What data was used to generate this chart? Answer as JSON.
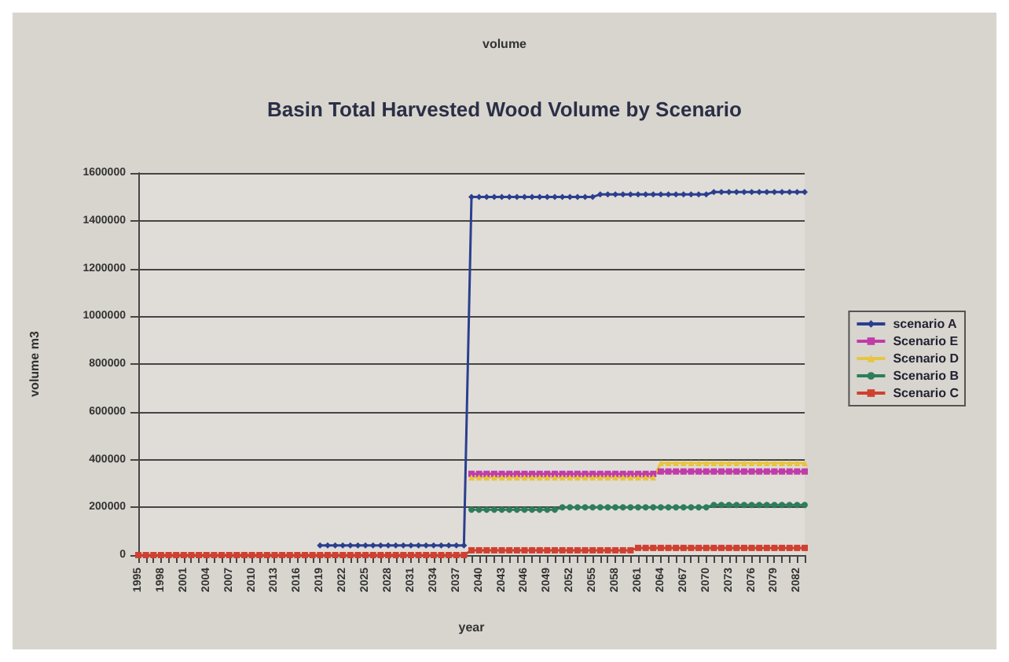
{
  "chart_data": {
    "type": "line",
    "title": "Basin Total Harvested Wood Volume by Scenario",
    "annotations": [
      "volume"
    ],
    "xlabel": "year",
    "ylabel": "volume m3",
    "categories": [
      "1995",
      null,
      null,
      "1998",
      null,
      null,
      "2001",
      null,
      null,
      "2004",
      null,
      null,
      "2007",
      null,
      null,
      "2010",
      null,
      null,
      "2013",
      null,
      null,
      "2016",
      null,
      null,
      "2019",
      null,
      null,
      "2022",
      null,
      null,
      "2025",
      null,
      null,
      "2028",
      null,
      null,
      "2031",
      null,
      null,
      "2034",
      null,
      null,
      "2037",
      null,
      null,
      "2040",
      null,
      null,
      "2043",
      null,
      null,
      "2046",
      null,
      null,
      "2049",
      null,
      null,
      "2052",
      null,
      null,
      "2055",
      null,
      null,
      "2058",
      null,
      null,
      "2061",
      null,
      null,
      "2064",
      null,
      null,
      "2067",
      null,
      null,
      "2070",
      null,
      null,
      "2073",
      null,
      null,
      "2076",
      null,
      null,
      "2079",
      null,
      null,
      "2082",
      null
    ],
    "series": [
      {
        "name": "scenario A",
        "color": "#2b3f8f",
        "marker": "diamond",
        "values": [
          null,
          null,
          null,
          null,
          null,
          null,
          null,
          null,
          null,
          null,
          null,
          null,
          null,
          null,
          null,
          null,
          null,
          null,
          null,
          null,
          null,
          null,
          null,
          null,
          40000,
          40000,
          40000,
          40000,
          40000,
          40000,
          40000,
          40000,
          40000,
          40000,
          40000,
          40000,
          40000,
          40000,
          40000,
          40000,
          40000,
          40000,
          40000,
          40000,
          1500000,
          1500000,
          1500000,
          1500000,
          1500000,
          1500000,
          1500000,
          1500000,
          1500000,
          1500000,
          1500000,
          1500000,
          1500000,
          1500000,
          1500000,
          1500000,
          1500000,
          1510000,
          1510000,
          1510000,
          1510000,
          1510000,
          1510000,
          1510000,
          1510000,
          1510000,
          1510000,
          1510000,
          1510000,
          1510000,
          1510000,
          1510000,
          1520000,
          1520000,
          1520000,
          1520000,
          1520000,
          1520000,
          1520000,
          1520000,
          1520000,
          1520000,
          1520000,
          1520000,
          1520000
        ]
      },
      {
        "name": "Scenario E",
        "color": "#c03ca8",
        "marker": "square",
        "values": [
          null,
          null,
          null,
          null,
          null,
          null,
          null,
          null,
          null,
          null,
          null,
          null,
          null,
          null,
          null,
          null,
          null,
          null,
          null,
          null,
          null,
          null,
          null,
          null,
          null,
          null,
          null,
          null,
          null,
          null,
          null,
          null,
          null,
          null,
          null,
          null,
          null,
          null,
          null,
          null,
          null,
          null,
          null,
          null,
          340000,
          340000,
          340000,
          340000,
          340000,
          340000,
          340000,
          340000,
          340000,
          340000,
          340000,
          340000,
          340000,
          340000,
          340000,
          340000,
          340000,
          340000,
          340000,
          340000,
          340000,
          340000,
          340000,
          340000,
          340000,
          350000,
          350000,
          350000,
          350000,
          350000,
          350000,
          350000,
          350000,
          350000,
          350000,
          350000,
          350000,
          350000,
          350000,
          350000,
          350000,
          350000,
          350000,
          350000,
          350000
        ]
      },
      {
        "name": "Scenario D",
        "color": "#e8c440",
        "marker": "triangle",
        "values": [
          null,
          null,
          null,
          null,
          null,
          null,
          null,
          null,
          null,
          null,
          null,
          null,
          null,
          null,
          null,
          null,
          null,
          null,
          null,
          null,
          null,
          null,
          null,
          null,
          null,
          null,
          null,
          null,
          null,
          null,
          null,
          null,
          null,
          null,
          null,
          null,
          null,
          null,
          null,
          null,
          null,
          null,
          null,
          null,
          325000,
          325000,
          325000,
          325000,
          325000,
          325000,
          325000,
          325000,
          325000,
          325000,
          325000,
          325000,
          325000,
          325000,
          325000,
          325000,
          325000,
          325000,
          325000,
          325000,
          325000,
          325000,
          325000,
          325000,
          325000,
          385000,
          385000,
          385000,
          385000,
          385000,
          385000,
          385000,
          385000,
          385000,
          385000,
          385000,
          385000,
          385000,
          385000,
          385000,
          385000,
          385000,
          385000,
          385000,
          385000
        ]
      },
      {
        "name": "Scenario B",
        "color": "#2e7d5a",
        "marker": "circle",
        "values": [
          null,
          null,
          null,
          null,
          null,
          null,
          null,
          null,
          null,
          null,
          null,
          null,
          null,
          null,
          null,
          null,
          null,
          null,
          null,
          null,
          null,
          null,
          null,
          null,
          null,
          null,
          null,
          null,
          null,
          null,
          null,
          null,
          null,
          null,
          null,
          null,
          null,
          null,
          null,
          null,
          null,
          null,
          null,
          null,
          190000,
          190000,
          190000,
          190000,
          190000,
          190000,
          190000,
          190000,
          190000,
          190000,
          190000,
          190000,
          200000,
          200000,
          200000,
          200000,
          200000,
          200000,
          200000,
          200000,
          200000,
          200000,
          200000,
          200000,
          200000,
          200000,
          200000,
          200000,
          200000,
          200000,
          200000,
          200000,
          210000,
          210000,
          210000,
          210000,
          210000,
          210000,
          210000,
          210000,
          210000,
          210000,
          210000,
          210000,
          210000
        ]
      },
      {
        "name": "Scenario C",
        "color": "#d04030",
        "marker": "square",
        "values": [
          0,
          0,
          0,
          0,
          0,
          0,
          0,
          0,
          0,
          0,
          0,
          0,
          0,
          0,
          0,
          0,
          0,
          0,
          0,
          0,
          0,
          0,
          0,
          0,
          0,
          0,
          0,
          0,
          0,
          0,
          0,
          0,
          0,
          0,
          0,
          0,
          0,
          0,
          0,
          0,
          0,
          0,
          0,
          0,
          20000,
          20000,
          20000,
          20000,
          20000,
          20000,
          20000,
          20000,
          20000,
          20000,
          20000,
          20000,
          20000,
          20000,
          20000,
          20000,
          20000,
          20000,
          20000,
          20000,
          20000,
          20000,
          30000,
          30000,
          30000,
          30000,
          30000,
          30000,
          30000,
          30000,
          30000,
          30000,
          30000,
          30000,
          30000,
          30000,
          30000,
          30000,
          30000,
          30000,
          30000,
          30000,
          30000,
          30000,
          30000
        ]
      }
    ],
    "ylim": [
      0,
      1600000
    ],
    "yticks": [
      0,
      200000,
      400000,
      600000,
      800000,
      1000000,
      1200000,
      1400000,
      1600000
    ],
    "grid": "y",
    "legend": "right"
  }
}
